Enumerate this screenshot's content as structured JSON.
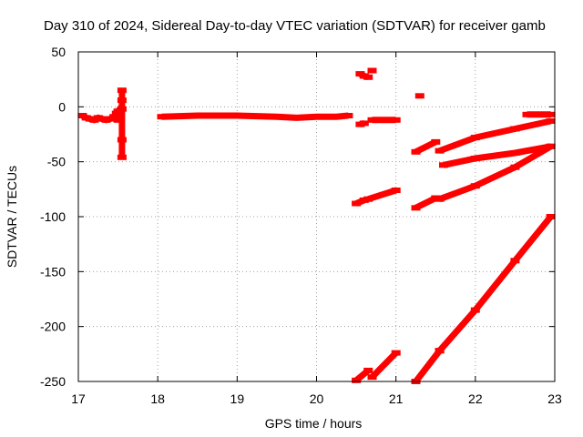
{
  "chart_data": {
    "type": "scatter",
    "title": "Day 310 of 2024, Sidereal Day-to-day VTEC variation (SDTVAR) for receiver gamb",
    "xlabel": "GPS time / hours",
    "ylabel": "SDTVAR / TECUs",
    "xlim": [
      17,
      23
    ],
    "ylim": [
      -250,
      50
    ],
    "x_ticks": [
      "17",
      "18",
      "19",
      "20",
      "21",
      "22",
      "23"
    ],
    "y_ticks": [
      "50",
      "0",
      "-50",
      "-100",
      "-150",
      "-200",
      "-250"
    ],
    "grid": true,
    "color": "#ff0000",
    "series": [
      {
        "name": "cluster-a",
        "points": [
          [
            17.05,
            -8
          ],
          [
            17.1,
            -10
          ],
          [
            17.15,
            -11
          ],
          [
            17.2,
            -12
          ],
          [
            17.25,
            -10
          ],
          [
            17.3,
            -11
          ],
          [
            17.35,
            -12
          ],
          [
            17.4,
            -11
          ],
          [
            17.45,
            -9
          ],
          [
            17.48,
            -6
          ],
          [
            17.5,
            -4
          ],
          [
            17.5,
            -12
          ]
        ]
      },
      {
        "name": "spike-a",
        "points": [
          [
            17.55,
            15
          ],
          [
            17.55,
            6
          ],
          [
            17.55,
            -2
          ],
          [
            17.55,
            -30
          ],
          [
            17.55,
            -46
          ]
        ]
      },
      {
        "name": "band-a",
        "points": [
          [
            18.05,
            -9
          ],
          [
            18.5,
            -8
          ],
          [
            19.0,
            -8
          ],
          [
            19.5,
            -9
          ],
          [
            19.75,
            -10
          ],
          [
            20.0,
            -9
          ],
          [
            20.25,
            -9
          ],
          [
            20.4,
            -8
          ]
        ]
      },
      {
        "name": "short-a",
        "points": [
          [
            20.55,
            -16
          ],
          [
            20.6,
            -15
          ]
        ]
      },
      {
        "name": "short-b",
        "points": [
          [
            20.55,
            30
          ],
          [
            20.6,
            28
          ],
          [
            20.65,
            27
          ]
        ]
      },
      {
        "name": "point-a",
        "points": [
          [
            20.7,
            33
          ]
        ]
      },
      {
        "name": "flat-a",
        "points": [
          [
            20.7,
            -12
          ],
          [
            21.0,
            -12
          ]
        ]
      },
      {
        "name": "point-b",
        "points": [
          [
            21.3,
            10
          ]
        ]
      },
      {
        "name": "rise-a",
        "points": [
          [
            21.25,
            -41
          ],
          [
            21.5,
            -32
          ]
        ]
      },
      {
        "name": "rise-b",
        "points": [
          [
            21.55,
            -40
          ],
          [
            22.0,
            -28
          ],
          [
            22.5,
            -20
          ],
          [
            22.95,
            -13
          ]
        ]
      },
      {
        "name": "flat-b",
        "points": [
          [
            22.65,
            -7
          ],
          [
            22.95,
            -7
          ]
        ]
      },
      {
        "name": "rise-c",
        "points": [
          [
            21.6,
            -53
          ],
          [
            22.0,
            -47
          ],
          [
            22.5,
            -42
          ],
          [
            22.95,
            -36
          ]
        ]
      },
      {
        "name": "rise-d",
        "points": [
          [
            21.55,
            -84
          ],
          [
            22.0,
            -72
          ],
          [
            22.5,
            -55
          ],
          [
            22.95,
            -36
          ]
        ]
      },
      {
        "name": "rise-e",
        "points": [
          [
            20.5,
            -88
          ],
          [
            20.6,
            -85
          ]
        ]
      },
      {
        "name": "rise-f",
        "points": [
          [
            20.65,
            -84
          ],
          [
            21.0,
            -76
          ]
        ]
      },
      {
        "name": "rise-g",
        "points": [
          [
            21.25,
            -92
          ],
          [
            21.5,
            -83
          ]
        ]
      },
      {
        "name": "steep-a",
        "points": [
          [
            20.5,
            -249
          ],
          [
            20.65,
            -240
          ]
        ]
      },
      {
        "name": "steep-b",
        "points": [
          [
            20.7,
            -246
          ],
          [
            21.0,
            -224
          ]
        ]
      },
      {
        "name": "steep-c",
        "points": [
          [
            21.25,
            -250
          ],
          [
            21.55,
            -222
          ]
        ]
      },
      {
        "name": "steep-d",
        "points": [
          [
            21.55,
            -222
          ],
          [
            22.0,
            -185
          ],
          [
            22.5,
            -140
          ],
          [
            22.95,
            -100
          ]
        ]
      }
    ]
  }
}
